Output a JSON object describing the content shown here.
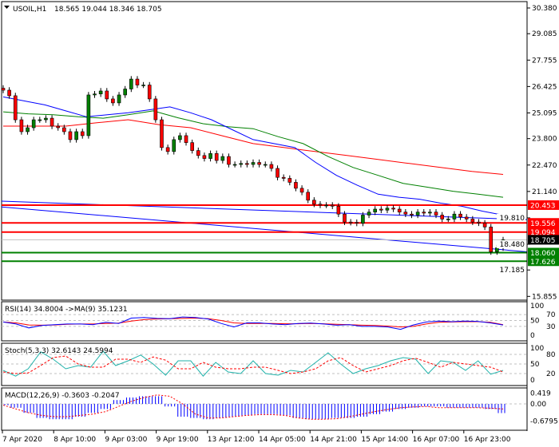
{
  "header": {
    "symbol": "USOIL,H1",
    "ohlc": "18.565 19.044 18.346 18.705"
  },
  "colors": {
    "bull": "#008000",
    "bear": "#ff0000",
    "ma_fast": "#0000ff",
    "ma_mid": "#008000",
    "ma_slow": "#ff0000",
    "resistance": "#ff0000",
    "support": "#008000",
    "current": "#000000",
    "rsi": "#0000ff",
    "rsi_ma": "#ff0000",
    "stoch_main": "#20b2aa",
    "stoch_signal": "#ff0000",
    "macd_hist": "#0000ff",
    "macd_signal": "#ff0000"
  },
  "chart_data": [
    {
      "type": "candlestick",
      "title": "USOIL,H1",
      "ylim": [
        15.855,
        30.38
      ],
      "y_ticks": [
        "30.380",
        "29.085",
        "27.755",
        "26.425",
        "25.095",
        "23.800",
        "22.470",
        "21.140",
        "19.810",
        "18.480",
        "17.185",
        "15.855"
      ],
      "x_ticks": [
        "7 Apr 2020",
        "8 Apr 10:00",
        "9 Apr 03:00",
        "9 Apr 19:00",
        "13 Apr 12:00",
        "14 Apr 05:00",
        "14 Apr 21:00",
        "15 Apr 14:00",
        "16 Apr 07:00",
        "16 Apr 23:00"
      ],
      "close": [
        26.24,
        25.96,
        24.75,
        24.15,
        24.35,
        24.75,
        24.75,
        24.83,
        24.43,
        24.35,
        24.15,
        23.75,
        24.15,
        23.95,
        26.0,
        26.05,
        26.2,
        25.8,
        25.6,
        26.0,
        26.3,
        26.8,
        26.5,
        26.5,
        25.8,
        24.75,
        23.35,
        23.15,
        23.75,
        23.95,
        23.6,
        23.2,
        22.95,
        22.8,
        23.05,
        22.7,
        22.9,
        22.5,
        22.5,
        22.55,
        22.5,
        22.6,
        22.5,
        22.5,
        22.3,
        21.85,
        21.8,
        21.6,
        21.3,
        21.1,
        20.7,
        20.5,
        20.45,
        20.45,
        20.4,
        20.0,
        19.6,
        19.58,
        19.54,
        19.95,
        20.1,
        20.25,
        20.2,
        20.3,
        20.25,
        20.1,
        20.0,
        19.95,
        20.1,
        20.05,
        20.1,
        19.95,
        19.75,
        19.75,
        20.0,
        19.85,
        19.75,
        19.6,
        19.55,
        19.35,
        18.1,
        18.3,
        18.705
      ],
      "ma_fast": [
        25.9,
        25.7,
        25.5,
        25.2,
        24.9,
        25.0,
        25.1,
        25.25,
        25.4,
        25.1,
        24.75,
        24.25,
        23.75,
        23.55,
        23.35,
        22.6,
        21.95,
        21.45,
        21.0,
        20.85,
        20.75,
        20.55,
        20.4,
        20.15,
        19.95
      ],
      "ma_mid": [
        25.15,
        25.05,
        25.0,
        24.9,
        24.83,
        25.0,
        25.2,
        24.85,
        24.55,
        24.4,
        24.3,
        23.9,
        23.55,
        22.9,
        22.35,
        21.95,
        21.55,
        21.35,
        21.15,
        21.0,
        20.85
      ],
      "ma_slow": [
        24.43,
        24.43,
        24.43,
        24.6,
        24.75,
        24.5,
        24.35,
        23.95,
        23.55,
        23.35,
        23.15,
        22.95,
        22.75,
        22.55,
        22.35,
        22.15,
        22.0
      ],
      "trendlines": [
        [
          20.65,
          19.72
        ],
        [
          20.36,
          18.1
        ]
      ],
      "levels": {
        "resistance": [
          "20.453",
          "19.556",
          "19.094"
        ],
        "support": [
          "18.060",
          "17.626"
        ],
        "current": "18.705"
      }
    },
    {
      "type": "line",
      "title": "RSI(14) 34.8004  ->MA(9) 35.1231",
      "ylim": [
        0,
        100
      ],
      "y_ticks": [
        "100",
        "70",
        "50",
        "30",
        "0"
      ],
      "levels": [
        70,
        50,
        30
      ],
      "rsi": [
        45,
        38,
        25,
        33,
        36,
        38,
        38,
        36,
        44,
        40,
        58,
        60,
        57,
        56,
        62,
        60,
        55,
        40,
        28,
        42,
        42,
        38,
        36,
        40,
        41,
        38,
        34,
        36,
        30,
        30,
        28,
        20,
        35,
        45,
        48,
        46,
        48,
        47,
        42,
        35
      ],
      "rsi_ma": [
        45,
        42,
        35,
        34,
        35,
        37,
        38,
        38,
        40,
        41,
        48,
        53,
        55,
        56,
        57,
        58,
        56,
        50,
        42,
        40,
        40,
        40,
        39,
        39,
        40,
        39,
        37,
        36,
        34,
        33,
        31,
        28,
        30,
        38,
        44,
        45,
        46,
        46,
        44,
        36
      ]
    },
    {
      "type": "line",
      "title": "Stoch(5,3,3) 32.6143 24.5994",
      "ylim": [
        0,
        100
      ],
      "y_ticks": [
        "100",
        "80",
        "50",
        "20",
        "0"
      ],
      "levels": [
        80,
        50,
        20
      ],
      "main": [
        30,
        12,
        35,
        88,
        65,
        35,
        45,
        40,
        90,
        45,
        60,
        78,
        50,
        15,
        60,
        60,
        12,
        55,
        25,
        20,
        60,
        20,
        15,
        30,
        25,
        55,
        85,
        50,
        20,
        35,
        45,
        60,
        70,
        65,
        20,
        60,
        55,
        30,
        60,
        18,
        30
      ],
      "signal": [
        25,
        20,
        22,
        45,
        70,
        75,
        50,
        40,
        40,
        65,
        65,
        55,
        72,
        62,
        35,
        35,
        55,
        40,
        35,
        35,
        40,
        40,
        30,
        20,
        25,
        35,
        60,
        70,
        45,
        25,
        35,
        45,
        60,
        68,
        55,
        40,
        55,
        50,
        45,
        40,
        25
      ]
    },
    {
      "type": "bar",
      "title": "MACD(12,26,9) -0.3603 -0.2047",
      "ylim": [
        -0.6795,
        0.419
      ],
      "y_ticks": [
        "0.419",
        "0.00",
        "-0.6795"
      ],
      "histogram": [
        -0.05,
        -0.15,
        -0.35,
        -0.55,
        -0.6,
        -0.6,
        -0.5,
        -0.35,
        -0.2,
        0.15,
        0.25,
        0.3,
        0.3,
        -0.1,
        -0.5,
        -0.55,
        -0.6,
        -0.55,
        -0.5,
        -0.45,
        -0.4,
        -0.4,
        -0.45,
        -0.55,
        -0.6,
        -0.6,
        -0.55,
        -0.55,
        -0.5,
        -0.4,
        -0.3,
        -0.2,
        -0.15,
        -0.1,
        -0.1,
        -0.15,
        -0.15,
        -0.15,
        -0.2,
        -0.36
      ],
      "signal": [
        -0.05,
        -0.2,
        -0.35,
        -0.45,
        -0.5,
        -0.5,
        -0.45,
        -0.4,
        -0.3,
        -0.1,
        0.1,
        0.25,
        0.35,
        0.3,
        0.0,
        -0.4,
        -0.55,
        -0.55,
        -0.5,
        -0.45,
        -0.42,
        -0.42,
        -0.45,
        -0.55,
        -0.6,
        -0.6,
        -0.58,
        -0.5,
        -0.4,
        -0.3,
        -0.22,
        -0.15,
        -0.12,
        -0.1,
        -0.15,
        -0.15,
        -0.15,
        -0.15,
        -0.17,
        -0.2
      ]
    }
  ]
}
